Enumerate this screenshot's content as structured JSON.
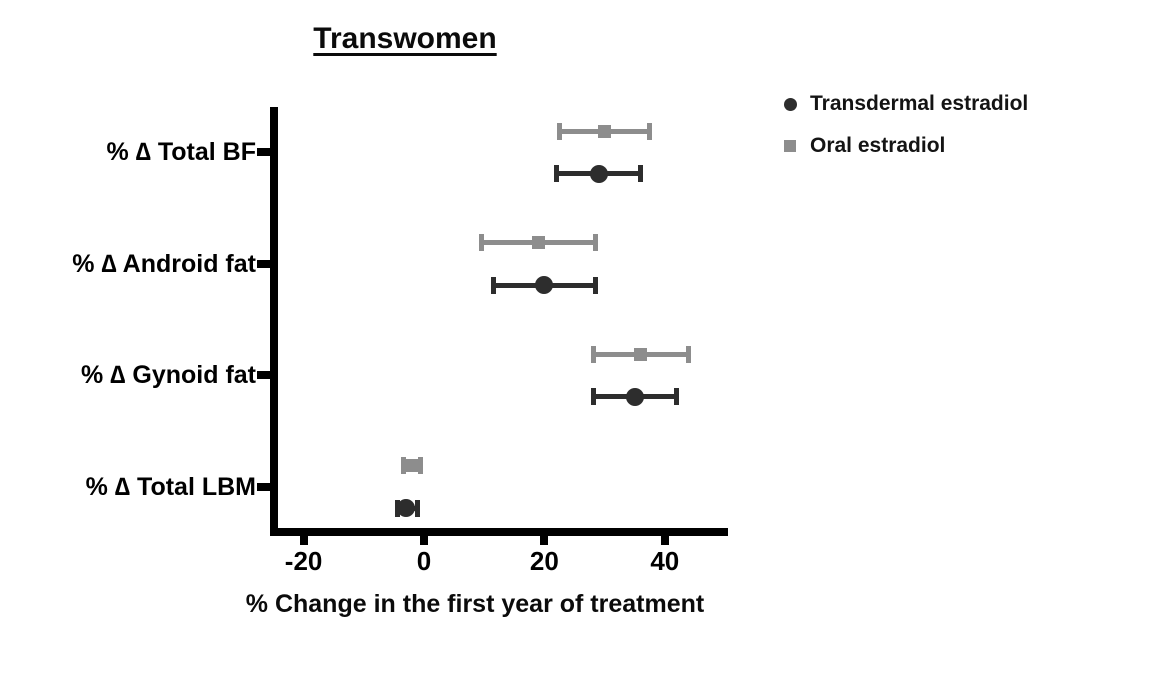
{
  "chart_data": {
    "type": "scatter",
    "subtype": "horizontal-dot-plot-with-error-bars",
    "title": "Transwomen",
    "xlabel": "% Change in the first year of treatment",
    "ylabel": "",
    "categories": [
      "% ∆ Total BF",
      "% ∆ Android fat",
      "% ∆ Gynoid fat",
      "% ∆ Total LBM"
    ],
    "x_ticks": [
      -20,
      0,
      20,
      40
    ],
    "xlim": [
      -25,
      50
    ],
    "grid": false,
    "legend_position": "top-right",
    "series": [
      {
        "name": "Transdermal estradiol",
        "marker": "circle",
        "color": "#2d2d2d",
        "values": [
          {
            "category": "% ∆ Total BF",
            "mean": 29,
            "lo": 22,
            "hi": 36
          },
          {
            "category": "% ∆ Android fat",
            "mean": 20,
            "lo": 11.5,
            "hi": 28.5
          },
          {
            "category": "% ∆ Gynoid fat",
            "mean": 35,
            "lo": 28,
            "hi": 42
          },
          {
            "category": "% ∆ Total LBM",
            "mean": -3,
            "lo": -4.5,
            "hi": -1
          }
        ]
      },
      {
        "name": "Oral estradiol",
        "marker": "square",
        "color": "#8d8d8d",
        "values": [
          {
            "category": "% ∆ Total BF",
            "mean": 30,
            "lo": 22.5,
            "hi": 37.5
          },
          {
            "category": "% ∆ Android fat",
            "mean": 19,
            "lo": 9.5,
            "hi": 28.5
          },
          {
            "category": "% ∆ Gynoid fat",
            "mean": 36,
            "lo": 28,
            "hi": 44
          },
          {
            "category": "% ∆ Total LBM",
            "mean": -2,
            "lo": -3.5,
            "hi": -0.5
          }
        ]
      }
    ],
    "colors": {
      "axis": "#000000",
      "text": "#0b0b0b",
      "background": "#ffffff"
    }
  }
}
